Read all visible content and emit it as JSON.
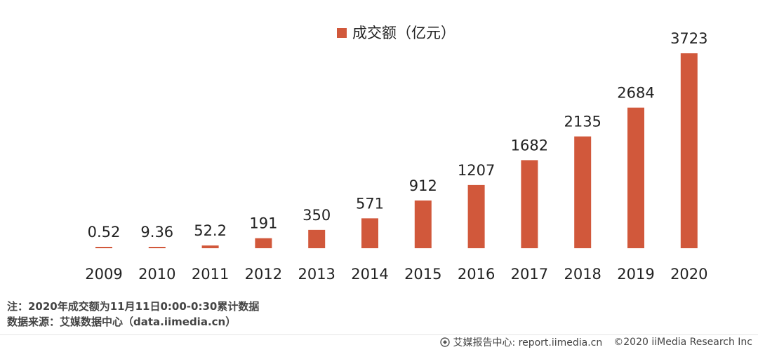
{
  "chart_data": {
    "type": "bar",
    "categories": [
      "2009",
      "2010",
      "2011",
      "2012",
      "2013",
      "2014",
      "2015",
      "2016",
      "2017",
      "2018",
      "2019",
      "2020"
    ],
    "values": [
      0.52,
      9.36,
      52.2,
      191,
      350,
      571,
      912,
      1207,
      1682,
      2135,
      2684,
      3723
    ],
    "value_labels": [
      "0.52",
      "9.36",
      "52.2",
      "191",
      "350",
      "571",
      "912",
      "1207",
      "1682",
      "2135",
      "2684",
      "3723"
    ],
    "series": [
      {
        "name": "成交额（亿元）",
        "values": [
          0.52,
          9.36,
          52.2,
          191,
          350,
          571,
          912,
          1207,
          1682,
          2135,
          2684,
          3723
        ]
      }
    ],
    "ylim": [
      0,
      3723
    ],
    "grid": false,
    "legend_position": "top-center",
    "bar_color": "#d1583b"
  },
  "legend": {
    "label": "成交额（亿元）"
  },
  "notes": {
    "note": "注：2020年成交额为11月11日0:00-0:30累计数据",
    "source": "数据来源：艾媒数据中心（data.iimedia.cn）"
  },
  "footer": {
    "brand": "艾媒报告中心: report.iimedia.cn",
    "copyright": "©2020  iiMedia Research  Inc"
  }
}
